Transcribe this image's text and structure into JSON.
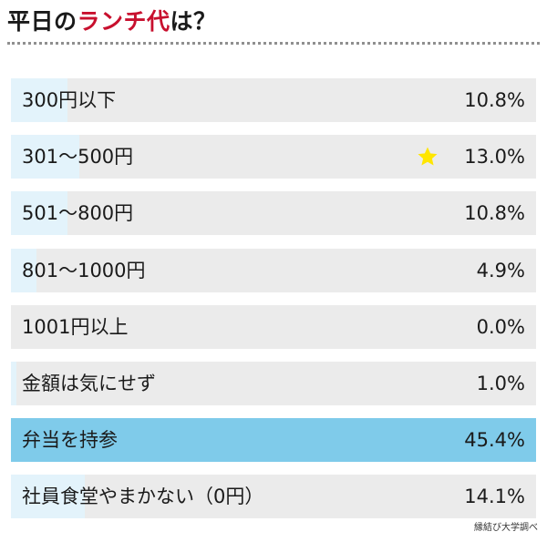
{
  "title": {
    "prefix": "平日の",
    "accent": "ランチ代",
    "suffix": "は？"
  },
  "source": "縁結び大学調べ",
  "colors": {
    "accent": "#c8102e",
    "bar": "#e3f3fb",
    "track": "#ebebeb",
    "highlight": "#7fcbea",
    "star": "#ffe600"
  },
  "chart_data": {
    "type": "bar",
    "orientation": "horizontal",
    "title": "平日のランチ代は？",
    "xlim": [
      0,
      100
    ],
    "grid": false,
    "legend": "none",
    "categories": [
      "300円以下",
      "301〜500円",
      "501〜800円",
      "801〜1000円",
      "1001円以上",
      "金額は気にせず",
      "弁当を持参",
      "社員食堂やまかない（0円）"
    ],
    "values": [
      10.8,
      13.0,
      10.8,
      4.9,
      0.0,
      1.0,
      45.4,
      14.1
    ],
    "value_labels": [
      "10.8%",
      "13.0%",
      "10.8%",
      "4.9%",
      "0.0%",
      "1.0%",
      "45.4%",
      "14.1%"
    ],
    "highlight_index": 6,
    "star_index": 1
  }
}
